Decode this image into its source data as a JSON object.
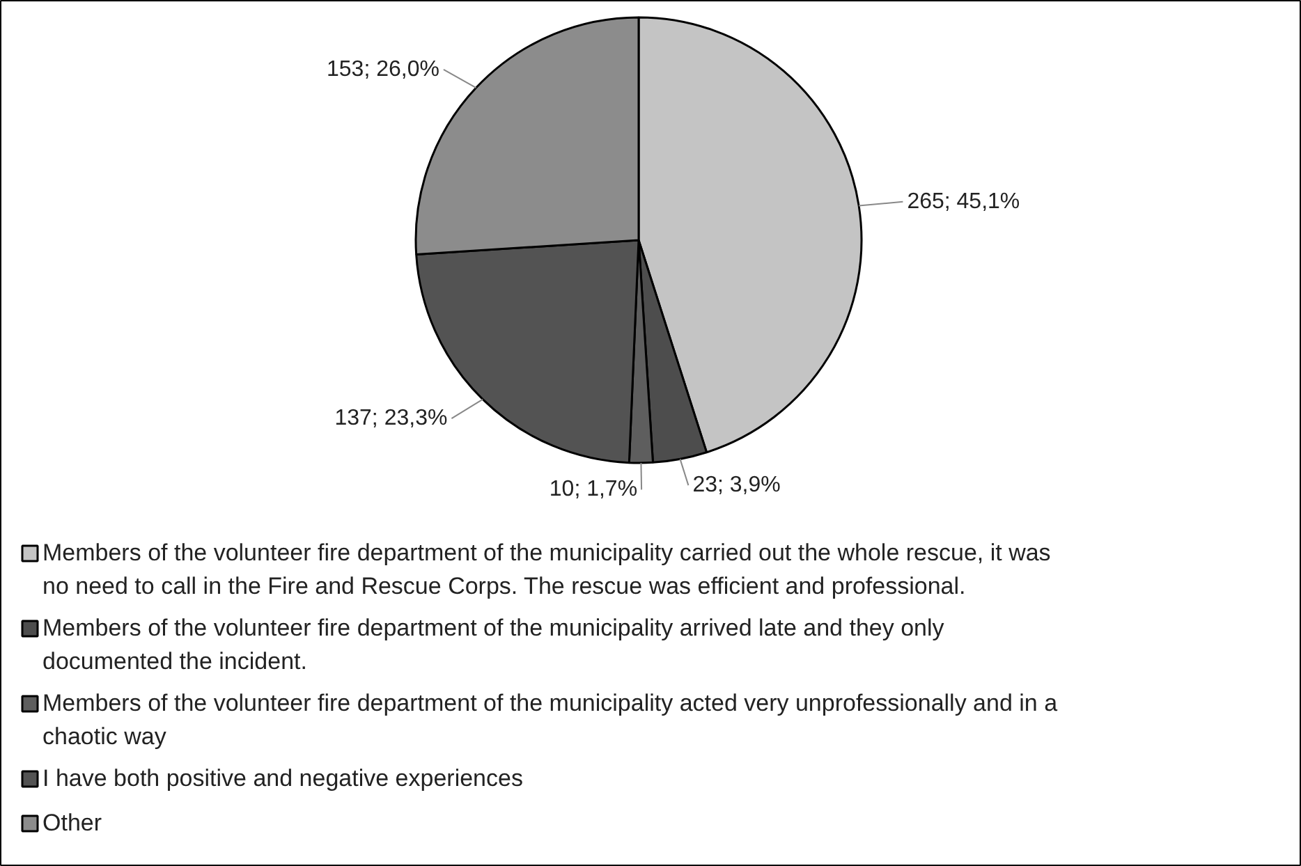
{
  "chart_data": {
    "type": "pie",
    "categories": [
      "Members of the volunteer fire department of the municipality carried out the whole rescue, it was no need to call in the Fire and Rescue Corps. The rescue was efficient and professional.",
      "Members of the volunteer fire department of the municipality arrived late and they only documented the incident.",
      "Members of the volunteer fire department of the municipality acted very unprofessionally and in a chaotic way",
      "I have both positive and negative experiences",
      "Other"
    ],
    "values": [
      265,
      23,
      10,
      137,
      153
    ],
    "value_labels": [
      "265; 45,1%",
      "23; 3,9%",
      "10; 1,7%",
      "137; 23,3%",
      "153; 26,0%"
    ],
    "colors": [
      "#c4c4c4",
      "#4d4d4d",
      "#5e5e5e",
      "#535353",
      "#8c8c8c"
    ],
    "legend": "bottom"
  }
}
